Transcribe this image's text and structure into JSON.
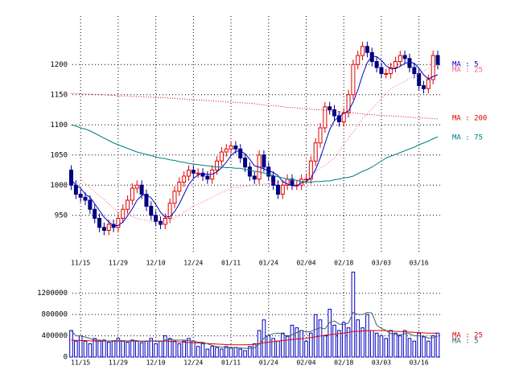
{
  "chart_data": [
    {
      "type": "candlestick",
      "categories": [
        null,
        null,
        "11/15",
        null,
        null,
        null,
        null,
        null,
        null,
        null,
        "11/29",
        null,
        null,
        null,
        null,
        null,
        null,
        null,
        "12/10",
        null,
        null,
        null,
        null,
        null,
        null,
        null,
        "12/24",
        null,
        null,
        null,
        null,
        null,
        null,
        null,
        "01/11",
        null,
        null,
        null,
        null,
        null,
        null,
        null,
        "01/24",
        null,
        null,
        null,
        null,
        null,
        null,
        null,
        "02/04",
        null,
        null,
        null,
        null,
        null,
        null,
        null,
        "02/18",
        null,
        null,
        null,
        null,
        null,
        null,
        null,
        "03/03",
        null,
        null,
        null,
        null,
        null,
        null,
        null,
        "03/16",
        null,
        null,
        null,
        null
      ],
      "open": [
        1025,
        1000,
        985,
        980,
        975,
        960,
        945,
        930,
        925,
        935,
        930,
        945,
        960,
        975,
        995,
        1000,
        985,
        965,
        950,
        940,
        935,
        945,
        970,
        990,
        1005,
        1015,
        1025,
        1020,
        1020,
        1015,
        1010,
        1025,
        1040,
        1055,
        1060,
        1065,
        1060,
        1045,
        1030,
        1015,
        1010,
        1050,
        1030,
        1015,
        1000,
        985,
        1000,
        1010,
        1000,
        1000,
        1010,
        1010,
        1040,
        1070,
        1095,
        1130,
        1125,
        1115,
        1105,
        1120,
        1150,
        1200,
        1215,
        1230,
        1220,
        1205,
        1195,
        1185,
        1185,
        1195,
        1205,
        1215,
        1210,
        1195,
        1185,
        1165,
        1160,
        1175,
        1215
      ],
      "high": [
        1033,
        1008,
        993,
        988,
        983,
        968,
        953,
        938,
        943,
        943,
        953,
        968,
        983,
        1003,
        1008,
        1008,
        993,
        973,
        958,
        948,
        953,
        978,
        998,
        1013,
        1023,
        1033,
        1033,
        1028,
        1028,
        1023,
        1033,
        1048,
        1063,
        1068,
        1073,
        1073,
        1068,
        1053,
        1038,
        1023,
        1058,
        1058,
        1038,
        1023,
        1008,
        1008,
        1018,
        1018,
        1008,
        1018,
        1018,
        1048,
        1078,
        1103,
        1138,
        1138,
        1133,
        1123,
        1128,
        1158,
        1208,
        1223,
        1238,
        1238,
        1228,
        1213,
        1203,
        1193,
        1203,
        1213,
        1223,
        1223,
        1218,
        1203,
        1193,
        1173,
        1183,
        1223,
        1223
      ],
      "low": [
        992,
        977,
        972,
        967,
        952,
        937,
        922,
        917,
        917,
        922,
        922,
        937,
        952,
        967,
        987,
        977,
        957,
        942,
        932,
        927,
        927,
        937,
        962,
        982,
        997,
        1007,
        1012,
        1012,
        1007,
        1002,
        1002,
        1017,
        1032,
        1047,
        1052,
        1052,
        1037,
        1022,
        1007,
        1002,
        1002,
        1022,
        1007,
        992,
        977,
        977,
        992,
        992,
        992,
        992,
        1002,
        1002,
        1032,
        1062,
        1087,
        1117,
        1107,
        1097,
        1097,
        1112,
        1142,
        1192,
        1207,
        1212,
        1197,
        1187,
        1177,
        1177,
        1177,
        1187,
        1197,
        1202,
        1187,
        1177,
        1157,
        1152,
        1152,
        1167,
        1192
      ],
      "close": [
        1000,
        985,
        980,
        975,
        960,
        945,
        930,
        925,
        935,
        930,
        945,
        960,
        975,
        995,
        1000,
        985,
        965,
        950,
        940,
        935,
        945,
        970,
        990,
        1005,
        1015,
        1025,
        1020,
        1020,
        1015,
        1010,
        1025,
        1040,
        1055,
        1060,
        1065,
        1060,
        1045,
        1030,
        1015,
        1010,
        1050,
        1030,
        1015,
        1000,
        985,
        1000,
        1010,
        1000,
        1000,
        1010,
        1010,
        1040,
        1070,
        1095,
        1130,
        1125,
        1115,
        1105,
        1120,
        1150,
        1200,
        1215,
        1230,
        1220,
        1205,
        1195,
        1185,
        1185,
        1195,
        1205,
        1215,
        1210,
        1195,
        1185,
        1165,
        1160,
        1175,
        1215,
        1200
      ],
      "up_color": "#e00000",
      "down_color": "#000080",
      "series": [
        {
          "name": "MA : 5",
          "color": "#0000c0",
          "dotted": false,
          "values": [
            1010,
            1000,
            995,
            985,
            980,
            969,
            958,
            947,
            939,
            933,
            933,
            939,
            949,
            961,
            975,
            983,
            984,
            979,
            968,
            955,
            947,
            948,
            956,
            969,
            985,
            1001,
            1011,
            1017,
            1019,
            1018,
            1018,
            1022,
            1029,
            1038,
            1049,
            1056,
            1057,
            1052,
            1043,
            1032,
            1030,
            1027,
            1024,
            1021,
            1016,
            1006,
            1002,
            999,
            999,
            1004,
            1006,
            1012,
            1026,
            1045,
            1069,
            1092,
            1107,
            1114,
            1119,
            1123,
            1138,
            1158,
            1183,
            1203,
            1214,
            1213,
            1207,
            1198,
            1193,
            1193,
            1197,
            1202,
            1204,
            1202,
            1194,
            1183,
            1176,
            1180,
            1183
          ]
        },
        {
          "name": "MA : 25",
          "color": "#ff6088",
          "dotted": true,
          "values": [
            null,
            null,
            1010,
            1003,
            996,
            989,
            982,
            976,
            969,
            962,
            955,
            953,
            950,
            948,
            945,
            943,
            942,
            940,
            938,
            937,
            935,
            940,
            945,
            950,
            955,
            960,
            965,
            969,
            972,
            976,
            980,
            984,
            988,
            991,
            995,
            996,
            997,
            998,
            999,
            1000,
            1001,
            1002,
            1003,
            1004,
            1005,
            1006,
            1007,
            1008,
            1008,
            1009,
            1010,
            1016,
            1022,
            1028,
            1033,
            1039,
            1045,
            1056,
            1067,
            1078,
            1088,
            1099,
            1110,
            1118,
            1127,
            1135,
            1143,
            1152,
            1160,
            1164,
            1168,
            1172,
            1177,
            1181,
            1185,
            1189,
            1193,
            1196,
            1200
          ]
        },
        {
          "name": "MA : 200",
          "color": "#e00000",
          "dotted": true,
          "values": [
            1152,
            1152,
            1151,
            1151,
            1151,
            1150,
            1150,
            1150,
            1149,
            1149,
            1148,
            1148,
            1148,
            1147,
            1147,
            1147,
            1146,
            1146,
            1145,
            1145,
            1145,
            1144,
            1144,
            1143,
            1143,
            1142,
            1142,
            1141,
            1141,
            1140,
            1140,
            1139,
            1139,
            1138,
            1138,
            1137,
            1137,
            1136,
            1136,
            1135,
            1134,
            1133,
            1132,
            1132,
            1131,
            1130,
            1129,
            1129,
            1128,
            1127,
            1127,
            1126,
            1125,
            1125,
            1124,
            1123,
            1122,
            1122,
            1121,
            1120,
            1120,
            1119,
            1118,
            1117,
            1117,
            1116,
            1116,
            1115,
            1115,
            1114,
            1114,
            1113,
            1113,
            1112,
            1112,
            1111,
            1111,
            1110,
            1110
          ]
        },
        {
          "name": "MA : 75",
          "color": "#008080",
          "dotted": false,
          "values": [
            1100,
            1098,
            1095,
            1093,
            1090,
            1086,
            1082,
            1078,
            1074,
            1070,
            1067,
            1064,
            1061,
            1058,
            1055,
            1053,
            1051,
            1049,
            1047,
            1045,
            1044,
            1042,
            1041,
            1039,
            1038,
            1036,
            1035,
            1034,
            1033,
            1032,
            1031,
            1030,
            1030,
            1029,
            1029,
            1028,
            1028,
            1026,
            1025,
            1023,
            1022,
            1020,
            1018,
            1016,
            1014,
            1012,
            1010,
            1009,
            1008,
            1006,
            1005,
            1005,
            1006,
            1006,
            1007,
            1007,
            1009,
            1010,
            1012,
            1013,
            1015,
            1019,
            1023,
            1026,
            1030,
            1035,
            1040,
            1045,
            1048,
            1051,
            1054,
            1057,
            1060,
            1063,
            1067,
            1070,
            1073,
            1077,
            1080
          ]
        }
      ],
      "ylim": [
        887,
        1267
      ],
      "yticks": [
        950,
        1000,
        1050,
        1100,
        1150,
        1200
      ],
      "grid": true
    },
    {
      "type": "bar",
      "categories": [
        null,
        null,
        "11/15",
        null,
        null,
        null,
        null,
        null,
        null,
        null,
        "11/29",
        null,
        null,
        null,
        null,
        null,
        null,
        null,
        "12/10",
        null,
        null,
        null,
        null,
        null,
        null,
        null,
        "12/24",
        null,
        null,
        null,
        null,
        null,
        null,
        null,
        "01/11",
        null,
        null,
        null,
        null,
        null,
        null,
        null,
        "01/24",
        null,
        null,
        null,
        null,
        null,
        null,
        null,
        "02/04",
        null,
        null,
        null,
        null,
        null,
        null,
        null,
        "02/18",
        null,
        null,
        null,
        null,
        null,
        null,
        null,
        "03/03",
        null,
        null,
        null,
        null,
        null,
        null,
        null,
        "03/16",
        null,
        null,
        null,
        null
      ],
      "values": [
        500000,
        300000,
        400000,
        300000,
        250000,
        350000,
        300000,
        320000,
        280000,
        300000,
        350000,
        300000,
        280000,
        320000,
        300000,
        270000,
        300000,
        350000,
        250000,
        300000,
        400000,
        350000,
        300000,
        250000,
        300000,
        350000,
        300000,
        200000,
        250000,
        150000,
        200000,
        180000,
        150000,
        200000,
        170000,
        180000,
        150000,
        120000,
        200000,
        250000,
        500000,
        700000,
        400000,
        350000,
        300000,
        450000,
        400000,
        600000,
        550000,
        500000,
        300000,
        450000,
        800000,
        700000,
        400000,
        900000,
        600000,
        500000,
        650000,
        550000,
        1600000,
        700000,
        550000,
        800000,
        500000,
        450000,
        400000,
        350000,
        500000,
        450000,
        400000,
        500000,
        350000,
        300000,
        450000,
        380000,
        300000,
        400000,
        450000
      ],
      "color": "#0000c0",
      "series": [
        {
          "name": "MA : 25",
          "color": "#e00000",
          "dotted": false,
          "values": [
            320000,
            315000,
            310000,
            310000,
            305000,
            300000,
            300000,
            300000,
            300000,
            300000,
            300000,
            300000,
            300000,
            300000,
            300000,
            300000,
            300000,
            300000,
            300000,
            300000,
            300000,
            295000,
            290000,
            285000,
            280000,
            275000,
            270000,
            265000,
            260000,
            255000,
            250000,
            245000,
            240000,
            235000,
            230000,
            230000,
            230000,
            230000,
            235000,
            240000,
            255000,
            270000,
            280000,
            290000,
            300000,
            310000,
            320000,
            330000,
            340000,
            345000,
            350000,
            365000,
            380000,
            395000,
            410000,
            420000,
            430000,
            440000,
            450000,
            465000,
            480000,
            485000,
            490000,
            495000,
            500000,
            500000,
            500000,
            495000,
            490000,
            485000,
            480000,
            475000,
            470000,
            465000,
            460000,
            455000,
            450000,
            450000,
            450000
          ]
        },
        {
          "name": "MA : 5",
          "color": "#406060",
          "dotted": false,
          "values": [
            500000,
            400000,
            400000,
            375000,
            350000,
            320000,
            320000,
            304000,
            300000,
            310000,
            310000,
            310000,
            302000,
            310000,
            310000,
            294000,
            294000,
            308000,
            294000,
            294000,
            320000,
            330000,
            320000,
            320000,
            320000,
            310000,
            300000,
            280000,
            280000,
            250000,
            220000,
            196000,
            186000,
            176000,
            180000,
            176000,
            170000,
            164000,
            164000,
            174000,
            244000,
            354000,
            410000,
            440000,
            450000,
            440000,
            380000,
            420000,
            460000,
            500000,
            470000,
            480000,
            520000,
            550000,
            530000,
            650000,
            680000,
            620000,
            610000,
            640000,
            840000,
            800000,
            800000,
            840000,
            830000,
            600000,
            540000,
            500000,
            440000,
            430000,
            420000,
            440000,
            440000,
            400000,
            400000,
            396000,
            356000,
            366000,
            396000
          ]
        }
      ],
      "ylim": [
        0,
        1650000
      ],
      "yticks": [
        0,
        400000,
        800000,
        1200000
      ],
      "grid": true
    }
  ]
}
